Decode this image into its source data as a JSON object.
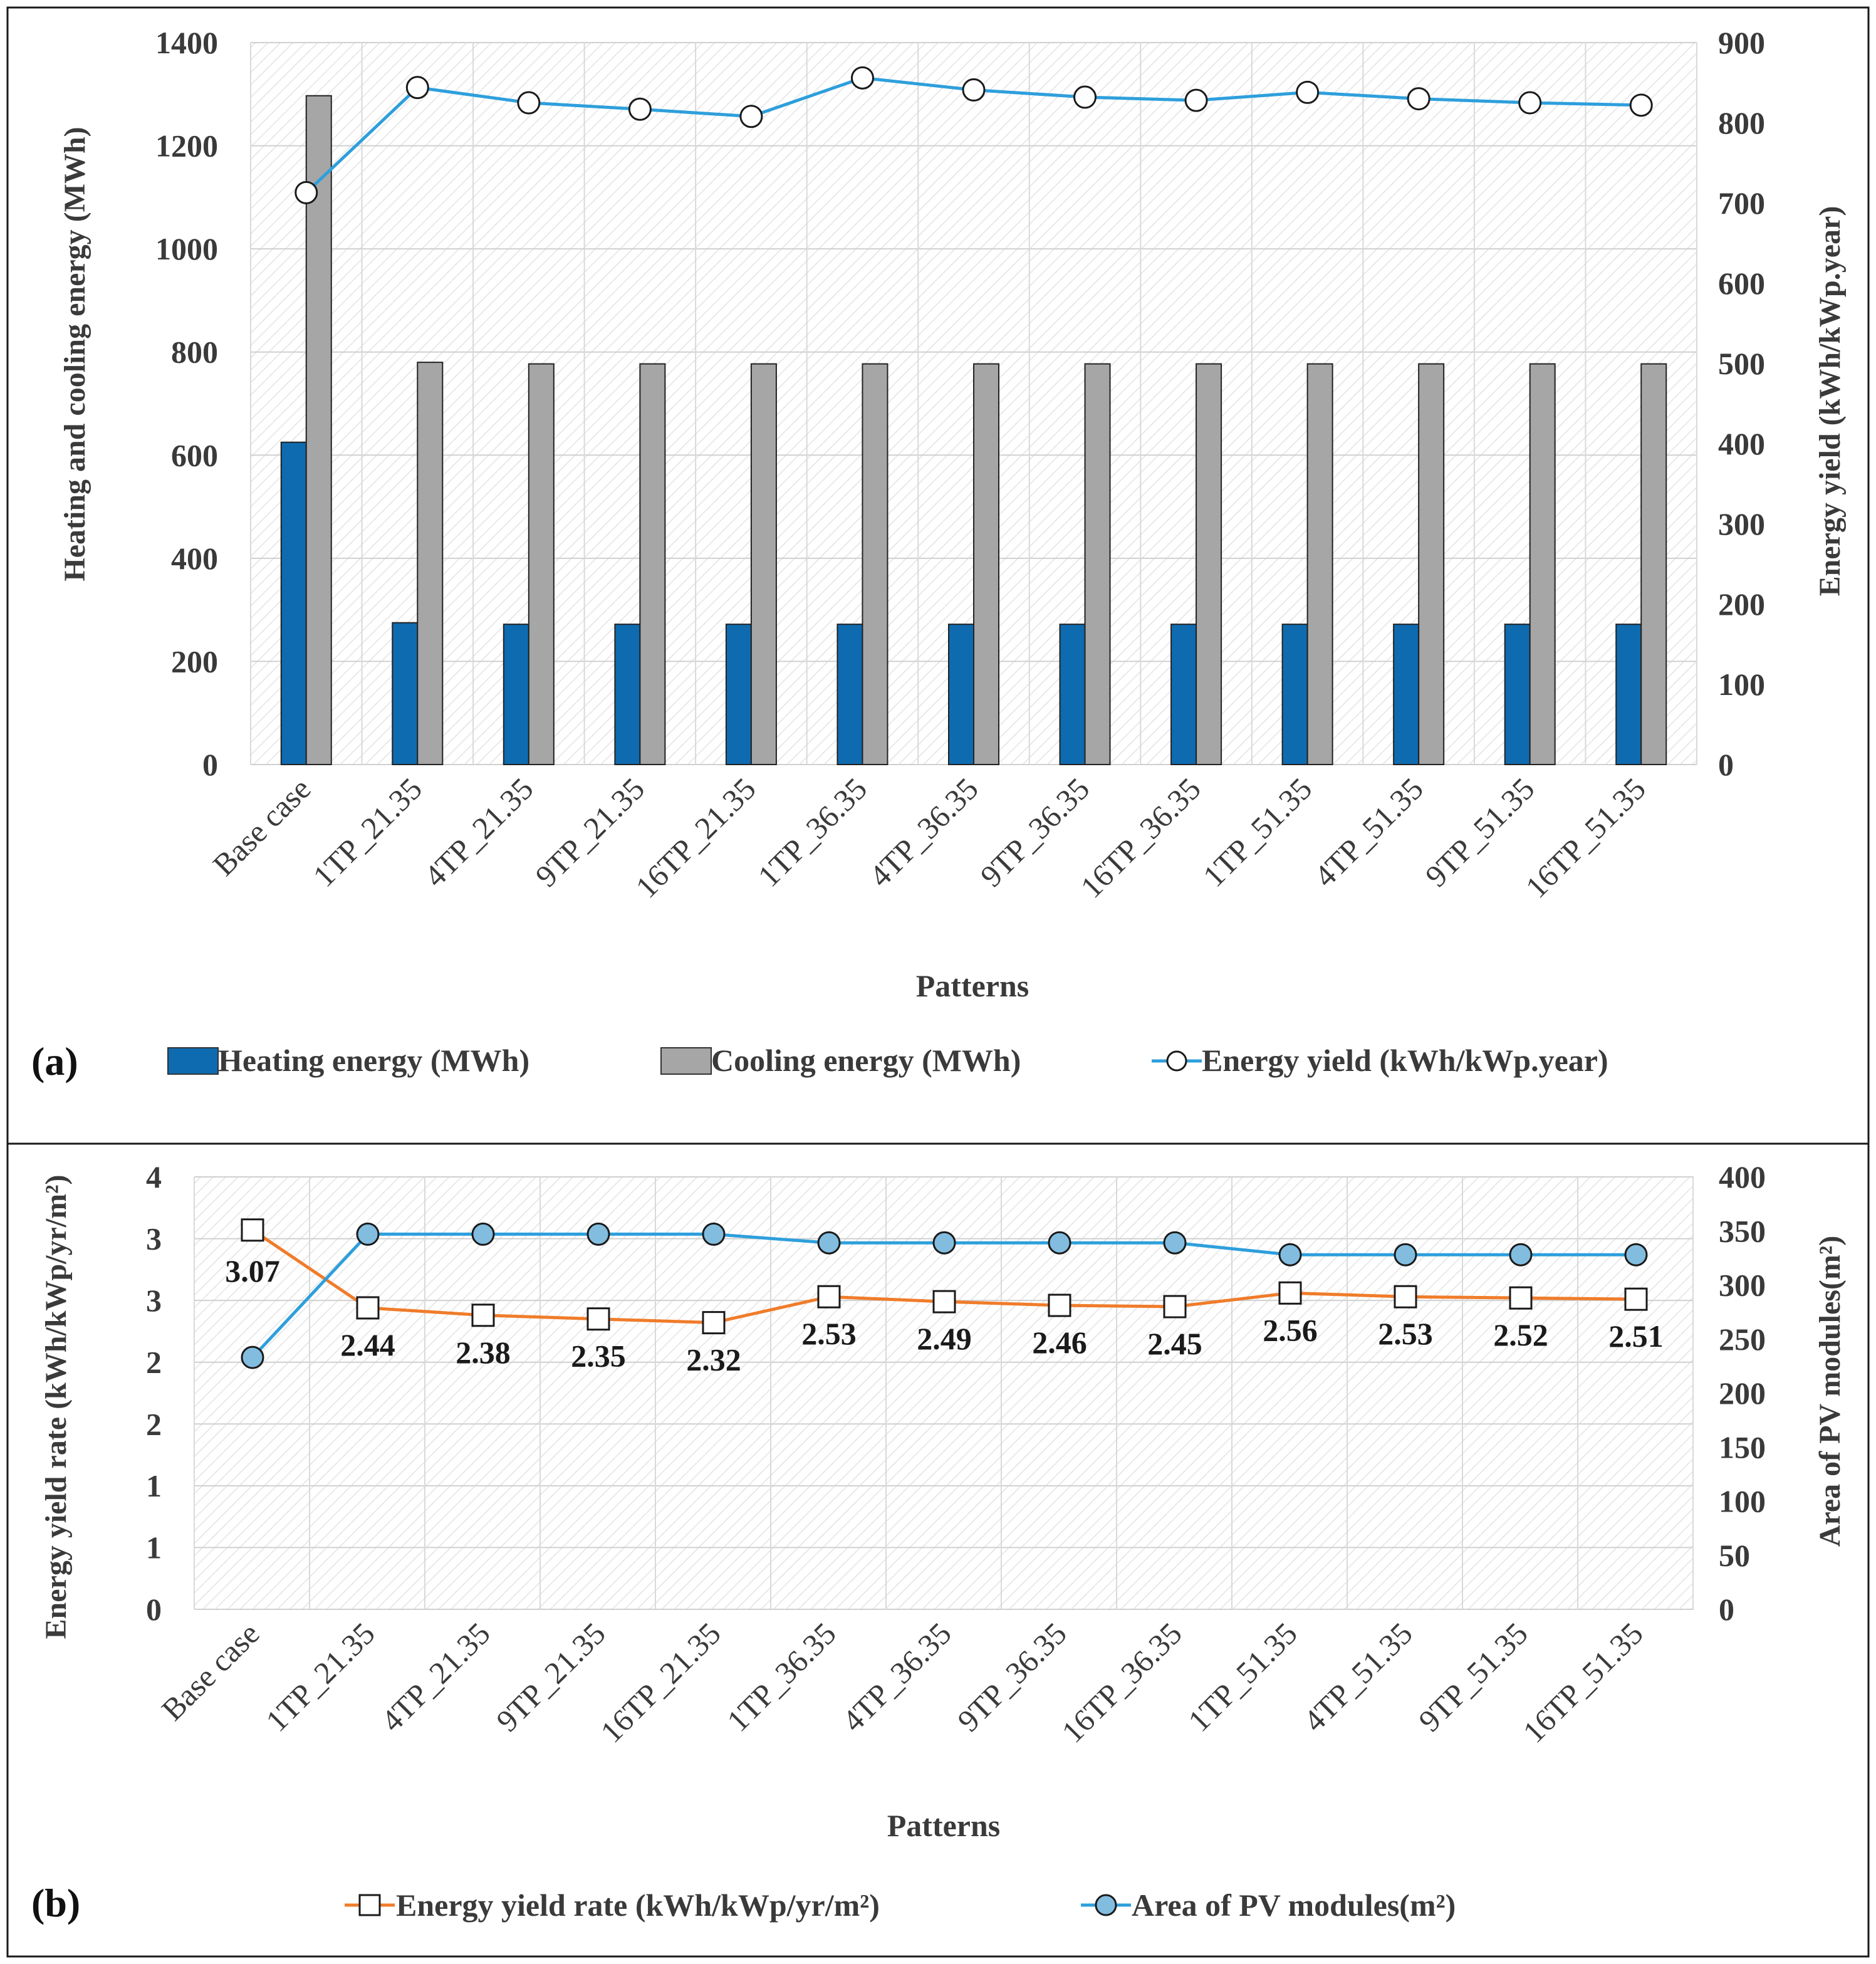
{
  "chart_data": [
    {
      "panel_label": "(a)",
      "type": "bar+line",
      "categories": [
        "Base case",
        "1TP_21.35",
        "4TP_21.35",
        "9TP_21.35",
        "16TP_21.35",
        "1TP_36.35",
        "4TP_36.35",
        "9TP_36.35",
        "16TP_36.35",
        "1TP_51.35",
        "4TP_51.35",
        "9TP_51.35",
        "16TP_51.35"
      ],
      "xlabel": "Patterns",
      "ylabel": "Heating and cooling energy (MWh)",
      "y2label": "Energy yield (kWh/kWp.year)",
      "ylim": [
        0,
        1400
      ],
      "y2lim": [
        0,
        900
      ],
      "yticks": [
        "0",
        "200",
        "400",
        "600",
        "800",
        "1000",
        "1200",
        "1400"
      ],
      "y2ticks": [
        "0",
        "100",
        "200",
        "300",
        "400",
        "500",
        "600",
        "700",
        "800",
        "900"
      ],
      "grid": true,
      "legend_position": "bottom",
      "series": [
        {
          "name": "Heating energy (MWh)",
          "kind": "bar",
          "axis": "left",
          "color": "#0e6bb0",
          "values": [
            625,
            275,
            272,
            272,
            272,
            272,
            272,
            272,
            272,
            272,
            272,
            272,
            272
          ]
        },
        {
          "name": "Cooling energy (MWh)",
          "kind": "bar",
          "axis": "left",
          "color": "#a6a6a6",
          "values": [
            1297,
            780,
            777,
            777,
            777,
            777,
            777,
            777,
            777,
            777,
            777,
            777,
            777
          ]
        },
        {
          "name": "Energy yield (kWh/kWp.year)",
          "kind": "line",
          "axis": "right",
          "color": "#2e9fdc",
          "marker": "circle",
          "values": [
            713,
            844,
            825,
            817,
            808,
            856,
            841,
            832,
            828,
            838,
            830,
            825,
            822
          ]
        }
      ]
    },
    {
      "panel_label": "(b)",
      "type": "line",
      "categories": [
        "Base case",
        "1TP_21.35",
        "4TP_21.35",
        "9TP_21.35",
        "16TP_21.35",
        "1TP_36.35",
        "4TP_36.35",
        "9TP_36.35",
        "16TP_36.35",
        "1TP_51.35",
        "4TP_51.35",
        "9TP_51.35",
        "16TP_51.35"
      ],
      "xlabel": "Patterns",
      "ylabel": "Energy yield rate (kWh/kWp/yr/m²)",
      "y2label": "Area of PV modules(m²)",
      "ylim": [
        0,
        3.5
      ],
      "y2lim": [
        0,
        400
      ],
      "yticks": [
        "0",
        "1",
        "1",
        "2",
        "2",
        "3",
        "3",
        "4"
      ],
      "y2ticks": [
        "0",
        "50",
        "100",
        "150",
        "200",
        "250",
        "300",
        "350",
        "400"
      ],
      "grid": true,
      "legend_position": "bottom",
      "series": [
        {
          "name": "Energy yield rate (kWh/kWp/yr/m²)",
          "kind": "line",
          "axis": "left",
          "color": "#f07c2a",
          "marker": "square",
          "values": [
            3.07,
            2.44,
            2.38,
            2.35,
            2.32,
            2.53,
            2.49,
            2.46,
            2.45,
            2.56,
            2.53,
            2.52,
            2.51
          ],
          "data_labels": [
            "3.07",
            "2.44",
            "2.38",
            "2.35",
            "2.32",
            "2.53",
            "2.49",
            "2.46",
            "2.45",
            "2.56",
            "2.53",
            "2.52",
            "2.51"
          ]
        },
        {
          "name": "Area of PV modules(m²)",
          "kind": "line",
          "axis": "right",
          "color": "#2e9fdc",
          "marker": "circle",
          "marker_fill": "#82bde0",
          "values": [
            233,
            347,
            347,
            347,
            347,
            339,
            339,
            339,
            339,
            328,
            328,
            328,
            328
          ]
        }
      ]
    }
  ]
}
